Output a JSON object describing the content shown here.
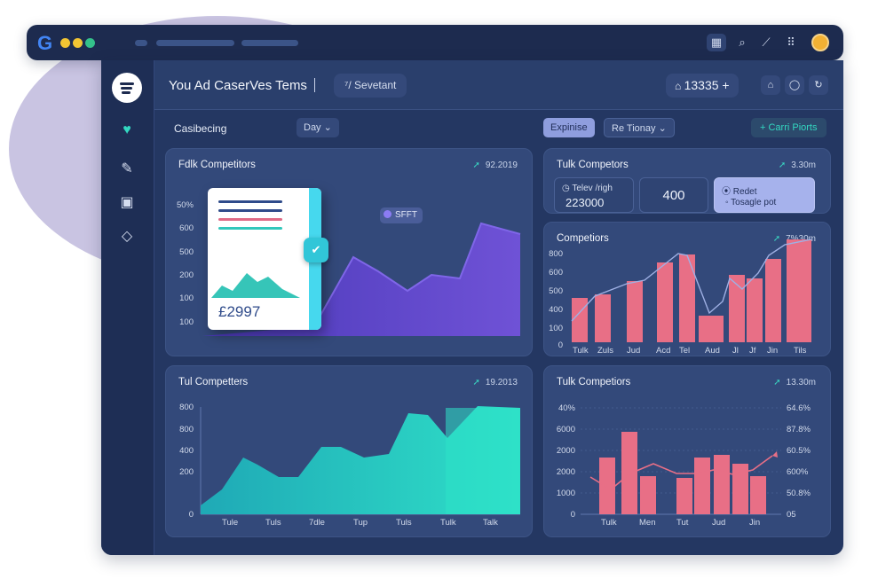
{
  "topbar": {
    "logo_letter": "G",
    "dot_colors": [
      "#f2c533",
      "#f2c533",
      "#34c18a"
    ],
    "icons": [
      "grid-icon",
      "search-icon",
      "magic-wand-icon",
      "apps-icon",
      "avatar"
    ]
  },
  "header": {
    "title": "You Ad CaserVes Tems",
    "search_chip": "Sevetant",
    "counter": "13335",
    "counter_plus": "+",
    "icons": [
      "home-icon",
      "home-icon",
      "shield-icon",
      "refresh-icon"
    ]
  },
  "sidebar": {
    "items": [
      "podcast-logo",
      "heart-icon",
      "edit-icon",
      "calendar-icon",
      "tag-icon"
    ]
  },
  "toolbar": {
    "label": "Casibecing",
    "day": "Day",
    "explore": "Expinise",
    "tionay": "Re Tionay",
    "add": "+ Carri Piorts"
  },
  "cards": {
    "c1": {
      "title": "Fdlk Competitors",
      "meta": "92.2019",
      "y_ticks": [
        "50%",
        "600",
        "500",
        "200",
        "100",
        "100"
      ],
      "doc_value": "£2997",
      "chip": "SFFT"
    },
    "c2": {
      "title": "Tulk Competors",
      "meta": "3.30m",
      "stat1_label": "Telev /righ",
      "stat1_value": "223000",
      "stat2_value": "400",
      "stat3_label": "Redet",
      "stat3_value": "Tosagle pot"
    },
    "c3": {
      "title": "Competiors",
      "meta": "7%30m",
      "y_ticks": [
        "800",
        "600",
        "500",
        "400",
        "100",
        "0"
      ],
      "x_ticks": [
        "Tulk",
        "Zuls",
        "Jud",
        "Acd",
        "Tel",
        "Aud",
        "Jl",
        "Jf",
        "Jin",
        "Tils"
      ]
    },
    "c4": {
      "title": "Tul Competters",
      "meta": "19.2013",
      "y_ticks": [
        "800",
        "800",
        "400",
        "200",
        "0"
      ],
      "x_ticks": [
        "Tule",
        "Tuls",
        "7dle",
        "Tup",
        "Tuls",
        "Tulk",
        "Talk"
      ]
    },
    "c5": {
      "title": "Tulk Competiors",
      "meta": "13.30m",
      "y_ticks_left": [
        "40%",
        "6000",
        "2000",
        "2000",
        "1000",
        "0"
      ],
      "y_ticks_right": [
        "64.6%",
        "87.8%",
        "60.5%",
        "600%",
        "50.8%",
        "05"
      ],
      "x_ticks": [
        "Tulk",
        "Men",
        "Tut",
        "Jud",
        "Jin"
      ]
    }
  },
  "colors": {
    "accent_teal": "#33d8c1",
    "bar_pink": "#e86f86",
    "area_purple": "#6a4fd0"
  }
}
